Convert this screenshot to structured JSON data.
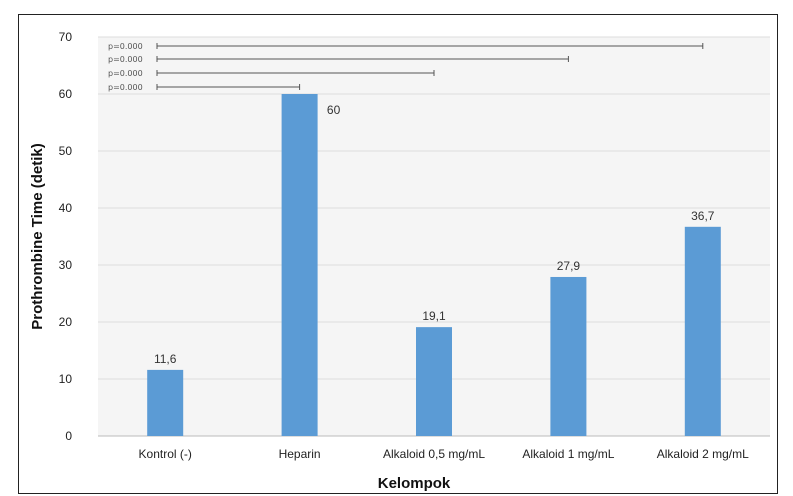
{
  "chart_data": {
    "type": "bar",
    "categories": [
      "Kontrol (-)",
      "Heparin",
      "Alkaloid 0,5 mg/mL",
      "Alkaloid 1 mg/mL",
      "Alkaloid 2 mg/mL"
    ],
    "values": [
      11.6,
      60,
      19.1,
      27.9,
      36.7
    ],
    "value_labels": [
      "11,6",
      "60",
      "19,1",
      "27,9",
      "36,7"
    ],
    "xlabel": "Kelompok",
    "ylabel": "Prothrombine Time (detik)",
    "ylim": [
      0,
      70
    ],
    "yticks": [
      "0",
      "10",
      "20",
      "30",
      "40",
      "50",
      "60",
      "70"
    ],
    "grid": true,
    "bar_color": "#5b9bd5",
    "significance": [
      {
        "label": "p=0.000",
        "from": "Kontrol (-)",
        "to": "Alkaloid 2 mg/mL"
      },
      {
        "label": "p=0.000",
        "from": "Kontrol (-)",
        "to": "Alkaloid 1 mg/mL"
      },
      {
        "label": "p=0.000",
        "from": "Kontrol (-)",
        "to": "Alkaloid 0,5 mg/mL"
      },
      {
        "label": "p=0.000",
        "from": "Kontrol (-)",
        "to": "Heparin"
      }
    ]
  }
}
